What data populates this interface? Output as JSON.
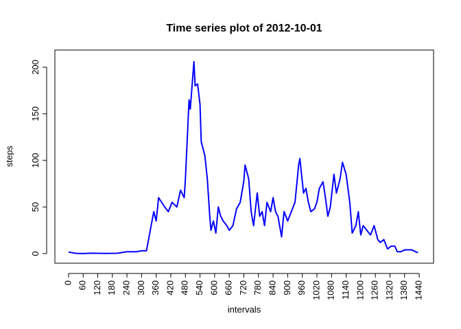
{
  "chart_data": {
    "type": "line",
    "title": "Time series plot of 2012-10-01",
    "x_label": "intervals",
    "y_label": "steps",
    "x": [
      0,
      30,
      60,
      100,
      150,
      200,
      240,
      280,
      300,
      320,
      325,
      350,
      360,
      370,
      395,
      410,
      425,
      445,
      460,
      475,
      480,
      495,
      500,
      515,
      520,
      530,
      540,
      545,
      560,
      570,
      580,
      585,
      595,
      605,
      615,
      625,
      635,
      650,
      660,
      675,
      690,
      705,
      720,
      725,
      740,
      750,
      760,
      775,
      785,
      795,
      805,
      815,
      830,
      840,
      850,
      860,
      875,
      885,
      900,
      915,
      930,
      945,
      950,
      965,
      975,
      985,
      995,
      1010,
      1020,
      1030,
      1045,
      1055,
      1065,
      1075,
      1090,
      1100,
      1115,
      1125,
      1140,
      1155,
      1165,
      1180,
      1190,
      1200,
      1210,
      1225,
      1240,
      1255,
      1270,
      1280,
      1295,
      1310,
      1325,
      1340,
      1350,
      1365,
      1380,
      1410,
      1425,
      1435
    ],
    "series": [
      {
        "name": "steps",
        "color": "#0000ff",
        "values": [
          1.7,
          0.3,
          0.1,
          0.5,
          0.2,
          0.4,
          2,
          2,
          3,
          3,
          10,
          45,
          35,
          60,
          50,
          45,
          55,
          50,
          68,
          60,
          80,
          165,
          155,
          206,
          180,
          182,
          160,
          120,
          105,
          80,
          40,
          25,
          35,
          22,
          50,
          40,
          35,
          30,
          25,
          30,
          48,
          55,
          78,
          95,
          80,
          45,
          30,
          65,
          40,
          45,
          30,
          55,
          45,
          60,
          45,
          40,
          18,
          45,
          35,
          45,
          55,
          95,
          102,
          65,
          70,
          55,
          45,
          48,
          55,
          70,
          77,
          60,
          40,
          50,
          85,
          65,
          80,
          98,
          85,
          55,
          22,
          30,
          45,
          20,
          30,
          25,
          20,
          30,
          15,
          12,
          15,
          5,
          8,
          8,
          2,
          2,
          4,
          4,
          2,
          1
        ]
      }
    ],
    "xlim": [
      -56,
      1499
    ],
    "ylim": [
      -10.3,
      218.4
    ],
    "xticks": [
      0,
      60,
      120,
      180,
      240,
      300,
      360,
      420,
      480,
      540,
      600,
      660,
      720,
      780,
      840,
      900,
      960,
      1020,
      1080,
      1140,
      1200,
      1260,
      1320,
      1380,
      1440
    ],
    "yticks": [
      0,
      50,
      100,
      150,
      200
    ]
  }
}
